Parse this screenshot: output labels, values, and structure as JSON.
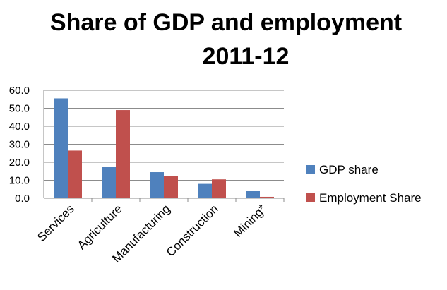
{
  "chart_data": {
    "type": "bar",
    "title_lines": [
      "Share of GDP and employment",
      "2011-12"
    ],
    "categories": [
      "Services",
      "Agriculture",
      "Manufacturing",
      "Construction",
      "Mining*"
    ],
    "series": [
      {
        "name": "GDP share",
        "color": "#4F81BD",
        "values": [
          55.5,
          17.5,
          14.5,
          8.0,
          4.0
        ]
      },
      {
        "name": "Employment Share",
        "color": "#C0504D",
        "values": [
          26.5,
          49.0,
          12.5,
          10.5,
          0.8
        ]
      }
    ],
    "ylim": [
      0,
      60
    ],
    "yticks": [
      "0.0",
      "10.0",
      "20.0",
      "30.0",
      "40.0",
      "50.0",
      "60.0"
    ],
    "grid": true,
    "legend_position": "right",
    "xlabel": "",
    "ylabel": ""
  }
}
